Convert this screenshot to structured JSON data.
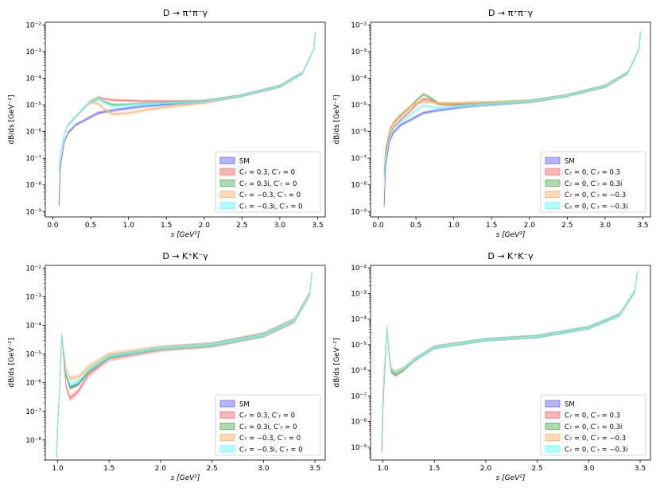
{
  "figure": {
    "colors": {
      "SM": "#6b6bff",
      "A": "#ff6e6e",
      "B": "#5fb35f",
      "C": "#ffb46e",
      "D": "#66ffff",
      "axis": "#000000"
    }
  },
  "chart_data": [
    {
      "type": "line",
      "title": "D → π⁺π⁻γ",
      "xlabel": "s [GeV²]",
      "ylabel": "dB/ds [GeV⁻²]",
      "xlim": [
        -0.1,
        3.6
      ],
      "ylim_log10": [
        -9.2,
        -1.9
      ],
      "xticks": [
        "0.0",
        "0.5",
        "1.0",
        "1.5",
        "2.0",
        "2.5",
        "3.0",
        "3.5"
      ],
      "yticks": [
        "10⁻⁹",
        "10⁻⁸",
        "10⁻⁷",
        "10⁻⁶",
        "10⁻⁵",
        "10⁻⁴",
        "10⁻³",
        "10⁻²"
      ],
      "legend_position": "lower right",
      "legend": [
        "SM",
        "C₇ = 0.3, C′₇ = 0",
        "C₇ = 0.3i, C′₇ = 0",
        "C₇ = −0.3, C′₇ = 0",
        "C₇ = −0.3i, C′₇ = 0"
      ],
      "series": [
        {
          "name": "SM",
          "color": "#6b6bff",
          "x": [
            0.08,
            0.1,
            0.15,
            0.2,
            0.3,
            0.4,
            0.5,
            0.6,
            0.7,
            0.8,
            1.0,
            1.2,
            1.5,
            2.0,
            2.5,
            3.0,
            3.3,
            3.45,
            3.47
          ],
          "log10_y": [
            -8.8,
            -7.3,
            -6.4,
            -6.05,
            -5.75,
            -5.6,
            -5.45,
            -5.3,
            -5.25,
            -5.2,
            -5.12,
            -5.05,
            -4.98,
            -4.88,
            -4.65,
            -4.3,
            -3.8,
            -2.9,
            -2.25
          ],
          "band": 0.06
        },
        {
          "name": "C₇ = 0.3, C′₇ = 0",
          "color": "#ff6e6e",
          "x": [
            0.08,
            0.1,
            0.15,
            0.2,
            0.3,
            0.4,
            0.5,
            0.6,
            0.7,
            0.8,
            1.0,
            1.2,
            1.5,
            2.0,
            2.5,
            3.0,
            3.3,
            3.45,
            3.47
          ],
          "log10_y": [
            -7.5,
            -6.9,
            -6.1,
            -5.75,
            -5.45,
            -5.15,
            -4.85,
            -4.72,
            -4.78,
            -4.82,
            -4.84,
            -4.86,
            -4.86,
            -4.85,
            -4.65,
            -4.3,
            -3.8,
            -2.9,
            -2.25
          ],
          "band": 0.05
        },
        {
          "name": "C₇ = 0.3i, C′₇ = 0",
          "color": "#5fb35f",
          "x": [
            0.08,
            0.1,
            0.15,
            0.2,
            0.3,
            0.4,
            0.5,
            0.6,
            0.7,
            0.8,
            1.0,
            1.2,
            1.5,
            2.0,
            2.5,
            3.0,
            3.3,
            3.45,
            3.47
          ],
          "log10_y": [
            -7.5,
            -6.9,
            -6.1,
            -5.75,
            -5.45,
            -5.15,
            -4.88,
            -4.78,
            -4.9,
            -5.0,
            -4.98,
            -4.95,
            -4.92,
            -4.87,
            -4.65,
            -4.3,
            -3.8,
            -2.9,
            -2.25
          ],
          "band": 0.05
        },
        {
          "name": "C₇ = −0.3, C′₇ = 0",
          "color": "#ffb46e",
          "x": [
            0.08,
            0.1,
            0.15,
            0.2,
            0.3,
            0.4,
            0.5,
            0.6,
            0.7,
            0.8,
            1.0,
            1.2,
            1.5,
            2.0,
            2.5,
            3.0,
            3.3,
            3.45,
            3.47
          ],
          "log10_y": [
            -7.5,
            -6.9,
            -6.1,
            -5.75,
            -5.45,
            -5.15,
            -4.9,
            -4.95,
            -5.2,
            -5.35,
            -5.3,
            -5.2,
            -5.08,
            -4.92,
            -4.65,
            -4.3,
            -3.8,
            -2.9,
            -2.25
          ],
          "band": 0.06
        },
        {
          "name": "C₇ = −0.3i, C′₇ = 0",
          "color": "#66ffff",
          "x": [
            0.08,
            0.1,
            0.15,
            0.2,
            0.3,
            0.4,
            0.5,
            0.6,
            0.7,
            0.8,
            1.0,
            1.2,
            1.5,
            2.0,
            2.5,
            3.0,
            3.3,
            3.45,
            3.47
          ],
          "log10_y": [
            -7.5,
            -6.9,
            -6.1,
            -5.75,
            -5.45,
            -5.15,
            -4.87,
            -4.75,
            -4.95,
            -5.05,
            -5.0,
            -4.97,
            -4.93,
            -4.87,
            -4.65,
            -4.3,
            -3.8,
            -2.9,
            -2.25
          ],
          "band": 0.05
        }
      ]
    },
    {
      "type": "line",
      "title": "D → π⁺π⁻γ",
      "xlabel": "s [GeV²]",
      "ylabel": "dB/ds [GeV⁻²]",
      "xlim": [
        -0.1,
        3.6
      ],
      "ylim_log10": [
        -9.2,
        -1.9
      ],
      "xticks": [
        "0.0",
        "0.5",
        "1.0",
        "1.5",
        "2.0",
        "2.5",
        "3.0",
        "3.5"
      ],
      "yticks": [
        "10⁻⁹",
        "10⁻⁸",
        "10⁻⁷",
        "10⁻⁶",
        "10⁻⁵",
        "10⁻⁴",
        "10⁻³",
        "10⁻²"
      ],
      "legend_position": "lower right",
      "legend": [
        "SM",
        "C₇ = 0, C′₇ = 0.3",
        "C₇ = 0, C′₇ = 0.3i",
        "C₇ = 0, C′₇ = −0.3",
        "C₇ = 0, C′₇ = −0.3i"
      ],
      "series": [
        {
          "name": "SM",
          "color": "#6b6bff",
          "x": [
            0.08,
            0.1,
            0.15,
            0.2,
            0.3,
            0.4,
            0.5,
            0.6,
            0.7,
            0.8,
            1.0,
            1.2,
            1.5,
            2.0,
            2.5,
            3.0,
            3.3,
            3.45,
            3.47
          ],
          "log10_y": [
            -8.8,
            -7.3,
            -6.4,
            -6.05,
            -5.75,
            -5.6,
            -5.45,
            -5.3,
            -5.25,
            -5.2,
            -5.12,
            -5.05,
            -4.98,
            -4.88,
            -4.65,
            -4.3,
            -3.8,
            -2.9,
            -2.25
          ],
          "band": 0.06
        },
        {
          "name": "C₇ = 0, C′₇ = 0.3",
          "color": "#ff6e6e",
          "x": [
            0.08,
            0.1,
            0.15,
            0.2,
            0.3,
            0.4,
            0.5,
            0.6,
            0.7,
            0.8,
            1.0,
            1.2,
            1.5,
            2.0,
            2.5,
            3.0,
            3.3,
            3.45,
            3.47
          ],
          "log10_y": [
            -7.7,
            -6.9,
            -6.2,
            -5.85,
            -5.55,
            -5.3,
            -5.0,
            -4.78,
            -4.82,
            -4.97,
            -5.0,
            -4.98,
            -4.94,
            -4.87,
            -4.65,
            -4.3,
            -3.8,
            -2.9,
            -2.25
          ],
          "band": 0.06
        },
        {
          "name": "C₇ = 0, C′₇ = 0.3i",
          "color": "#5fb35f",
          "x": [
            0.08,
            0.1,
            0.15,
            0.2,
            0.3,
            0.4,
            0.5,
            0.6,
            0.7,
            0.8,
            1.0,
            1.2,
            1.5,
            2.0,
            2.5,
            3.0,
            3.3,
            3.45,
            3.47
          ],
          "log10_y": [
            -7.5,
            -6.7,
            -6.0,
            -5.7,
            -5.4,
            -5.15,
            -4.85,
            -4.6,
            -4.75,
            -4.95,
            -4.97,
            -4.95,
            -4.92,
            -4.86,
            -4.65,
            -4.3,
            -3.8,
            -2.9,
            -2.25
          ],
          "band": 0.06
        },
        {
          "name": "C₇ = 0, C′₇ = −0.3",
          "color": "#ffb46e",
          "x": [
            0.08,
            0.1,
            0.15,
            0.2,
            0.3,
            0.4,
            0.5,
            0.6,
            0.7,
            0.8,
            1.0,
            1.2,
            1.5,
            2.0,
            2.5,
            3.0,
            3.3,
            3.45,
            3.47
          ],
          "log10_y": [
            -7.4,
            -6.6,
            -5.95,
            -5.65,
            -5.35,
            -5.1,
            -4.95,
            -4.88,
            -4.9,
            -4.95,
            -4.94,
            -4.92,
            -4.9,
            -4.85,
            -4.65,
            -4.3,
            -3.8,
            -2.9,
            -2.25
          ],
          "band": 0.06
        },
        {
          "name": "C₇ = 0, C′₇ = −0.3i",
          "color": "#66ffff",
          "x": [
            0.08,
            0.1,
            0.15,
            0.2,
            0.3,
            0.4,
            0.5,
            0.6,
            0.7,
            0.8,
            1.0,
            1.2,
            1.5,
            2.0,
            2.5,
            3.0,
            3.3,
            3.45,
            3.47
          ],
          "log10_y": [
            -7.8,
            -7.0,
            -6.3,
            -5.95,
            -5.65,
            -5.42,
            -5.2,
            -5.02,
            -5.07,
            -5.12,
            -5.07,
            -5.02,
            -4.96,
            -4.87,
            -4.65,
            -4.3,
            -3.8,
            -2.9,
            -2.25
          ],
          "band": 0.05
        }
      ]
    },
    {
      "type": "line",
      "title": "D → K⁺K⁻γ",
      "xlabel": "s [GeV²]",
      "ylabel": "dB/ds [GeV⁻²]",
      "xlim": [
        0.88,
        3.6
      ],
      "ylim_log10": [
        -8.7,
        -1.9
      ],
      "xticks": [
        "1.0",
        "1.5",
        "2.0",
        "2.5",
        "3.0",
        "3.5"
      ],
      "yticks": [
        "10⁻⁸",
        "10⁻⁷",
        "10⁻⁶",
        "10⁻⁵",
        "10⁻⁴",
        "10⁻³",
        "10⁻²"
      ],
      "legend_position": "lower right",
      "legend": [
        "SM",
        "C₇ = 0.3, C′₇ = 0",
        "C₇ = 0.3i, C′₇ = 0",
        "C₇ = −0.3, C′₇ = 0",
        "C₇ = −0.3i, C′₇ = 0"
      ],
      "series": [
        {
          "name": "SM",
          "color": "#6b6bff",
          "x": [
            0.99,
            1.0,
            1.02,
            1.04,
            1.06,
            1.08,
            1.12,
            1.2,
            1.3,
            1.5,
            2.0,
            2.5,
            3.0,
            3.3,
            3.45,
            3.47
          ],
          "log10_y": [
            -8.6,
            -7.5,
            -6.1,
            -4.3,
            -5.0,
            -5.7,
            -6.15,
            -6.05,
            -5.6,
            -5.1,
            -4.8,
            -4.68,
            -4.33,
            -3.83,
            -2.9,
            -2.15
          ],
          "band": 0.07
        },
        {
          "name": "C₇ = 0.3, C′₇ = 0",
          "color": "#ff6e6e",
          "x": [
            0.99,
            1.0,
            1.02,
            1.04,
            1.06,
            1.08,
            1.12,
            1.2,
            1.3,
            1.5,
            2.0,
            2.5,
            3.0,
            3.3,
            3.45,
            3.47
          ],
          "log10_y": [
            -8.6,
            -7.5,
            -6.1,
            -4.3,
            -5.2,
            -6.1,
            -6.55,
            -6.3,
            -5.7,
            -5.15,
            -4.82,
            -4.68,
            -4.33,
            -3.83,
            -2.9,
            -2.15
          ],
          "band": 0.1
        },
        {
          "name": "C₇ = 0.3i, C′₇ = 0",
          "color": "#5fb35f",
          "x": [
            0.99,
            1.0,
            1.02,
            1.04,
            1.06,
            1.08,
            1.12,
            1.2,
            1.3,
            1.5,
            2.0,
            2.5,
            3.0,
            3.3,
            3.45,
            3.47
          ],
          "log10_y": [
            -8.6,
            -7.5,
            -6.1,
            -4.3,
            -5.0,
            -5.75,
            -6.2,
            -6.05,
            -5.6,
            -5.1,
            -4.8,
            -4.68,
            -4.33,
            -3.83,
            -2.9,
            -2.15
          ],
          "band": 0.07
        },
        {
          "name": "C₇ = −0.3, C′₇ = 0",
          "color": "#ffb46e",
          "x": [
            0.99,
            1.0,
            1.02,
            1.04,
            1.06,
            1.08,
            1.12,
            1.2,
            1.3,
            1.5,
            2.0,
            2.5,
            3.0,
            3.3,
            3.45,
            3.47
          ],
          "log10_y": [
            -8.6,
            -7.5,
            -6.1,
            -4.3,
            -4.9,
            -5.5,
            -5.85,
            -5.8,
            -5.45,
            -5.0,
            -4.76,
            -4.66,
            -4.33,
            -3.83,
            -2.9,
            -2.15
          ],
          "band": 0.08
        },
        {
          "name": "C₇ = −0.3i, C′₇ = 0",
          "color": "#66ffff",
          "x": [
            0.99,
            1.0,
            1.02,
            1.04,
            1.06,
            1.08,
            1.12,
            1.2,
            1.3,
            1.5,
            2.0,
            2.5,
            3.0,
            3.3,
            3.45,
            3.47
          ],
          "log10_y": [
            -8.6,
            -7.5,
            -6.1,
            -4.3,
            -4.95,
            -5.65,
            -6.05,
            -5.95,
            -5.55,
            -5.08,
            -4.79,
            -4.67,
            -4.33,
            -3.83,
            -2.9,
            -2.15
          ],
          "band": 0.07
        }
      ]
    },
    {
      "type": "line",
      "title": "D → K⁺K⁻γ",
      "xlabel": "s [GeV²]",
      "ylabel": "dB/ds [GeV⁻²]",
      "xlim": [
        0.88,
        3.6
      ],
      "ylim_log10": [
        -9.5,
        -1.9
      ],
      "xticks": [
        "1.0",
        "1.5",
        "2.0",
        "2.5",
        "3.0",
        "3.5"
      ],
      "yticks": [
        "10⁻⁹",
        "10⁻⁸",
        "10⁻⁷",
        "10⁻⁶",
        "10⁻⁵",
        "10⁻⁴",
        "10⁻³",
        "10⁻²"
      ],
      "legend_position": "lower right",
      "legend": [
        "SM",
        "C₇ = 0, C′₇ = 0.3",
        "C₇ = 0, C′₇ = 0.3i",
        "C₇ = 0, C′₇ = −0.3",
        "C₇ = 0, C′₇ = −0.3i"
      ],
      "series": [
        {
          "name": "SM",
          "color": "#6b6bff",
          "x": [
            0.99,
            1.0,
            1.02,
            1.04,
            1.06,
            1.08,
            1.12,
            1.2,
            1.3,
            1.5,
            2.0,
            2.5,
            3.0,
            3.3,
            3.45,
            3.47
          ],
          "log10_y": [
            -8.7,
            -7.2,
            -5.6,
            -4.3,
            -5.3,
            -5.95,
            -6.1,
            -5.95,
            -5.6,
            -5.1,
            -4.8,
            -4.68,
            -4.33,
            -3.83,
            -2.9,
            -2.15
          ],
          "band": 0.07
        },
        {
          "name": "C₇ = 0, C′₇ = 0.3",
          "color": "#ff6e6e",
          "x": [
            0.99,
            1.0,
            1.02,
            1.04,
            1.06,
            1.08,
            1.12,
            1.2,
            1.3,
            1.5,
            2.0,
            2.5,
            3.0,
            3.3,
            3.45,
            3.47
          ],
          "log10_y": [
            -9.2,
            -7.6,
            -5.8,
            -4.35,
            -5.4,
            -6.05,
            -6.2,
            -6.0,
            -5.62,
            -5.1,
            -4.8,
            -4.68,
            -4.33,
            -3.83,
            -2.9,
            -2.15
          ],
          "band": 0.07
        },
        {
          "name": "C₇ = 0, C′₇ = 0.3i",
          "color": "#5fb35f",
          "x": [
            0.99,
            1.0,
            1.02,
            1.04,
            1.06,
            1.08,
            1.12,
            1.2,
            1.3,
            1.5,
            2.0,
            2.5,
            3.0,
            3.3,
            3.45,
            3.47
          ],
          "log10_y": [
            -8.8,
            -7.3,
            -5.65,
            -4.3,
            -5.35,
            -6.0,
            -6.15,
            -5.97,
            -5.6,
            -5.1,
            -4.8,
            -4.68,
            -4.33,
            -3.83,
            -2.9,
            -2.15
          ],
          "band": 0.07
        },
        {
          "name": "C₇ = 0, C′₇ = −0.3",
          "color": "#ffb46e",
          "x": [
            0.99,
            1.0,
            1.02,
            1.04,
            1.06,
            1.08,
            1.12,
            1.2,
            1.3,
            1.5,
            2.0,
            2.5,
            3.0,
            3.3,
            3.45,
            3.47
          ],
          "log10_y": [
            -8.5,
            -7.0,
            -5.5,
            -4.3,
            -5.25,
            -5.9,
            -6.05,
            -5.9,
            -5.58,
            -5.08,
            -4.8,
            -4.68,
            -4.33,
            -3.83,
            -2.9,
            -2.15
          ],
          "band": 0.07
        },
        {
          "name": "C₇ = 0, C′₇ = −0.3i",
          "color": "#66ffff",
          "x": [
            0.99,
            1.0,
            1.02,
            1.04,
            1.06,
            1.08,
            1.12,
            1.2,
            1.3,
            1.5,
            2.0,
            2.5,
            3.0,
            3.3,
            3.45,
            3.47
          ],
          "log10_y": [
            -8.7,
            -7.2,
            -5.6,
            -4.3,
            -5.3,
            -5.95,
            -6.1,
            -5.95,
            -5.6,
            -5.1,
            -4.8,
            -4.68,
            -4.33,
            -3.83,
            -2.9,
            -2.15
          ],
          "band": 0.07
        }
      ]
    }
  ]
}
